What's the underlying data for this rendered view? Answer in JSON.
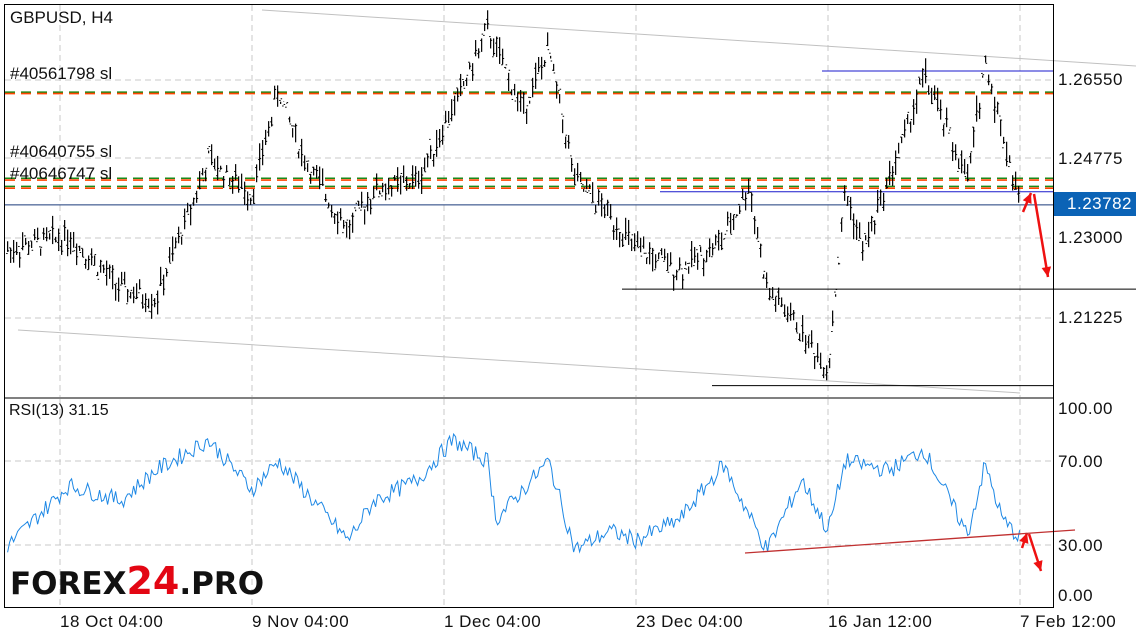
{
  "header": {
    "symbol_timeframe": "GBPUSD, H4"
  },
  "order_labels": [
    "#40561798 sl",
    "#40640755 sl",
    "#40646747 sl"
  ],
  "logo": {
    "prefix": "FOREX",
    "number": "24",
    "suffix": ".PRO"
  },
  "colors": {
    "candle": "#000000",
    "current_price_bg": "#0b63b6",
    "arrow": "#ee1111",
    "rsi_line": "#1e88e5",
    "order_green": "#1a8a1a",
    "order_orange": "#ff4500",
    "level_line": "#1a1acc",
    "trend_line": "#c0c0c0",
    "rsi_support": "#c03030"
  },
  "chart_data": [
    {
      "type": "candlestick",
      "title": "GBPUSD, H4",
      "current_price": "1.23782",
      "y_ticks": [
        "1.26550",
        "1.24775",
        "1.23000",
        "1.21225"
      ],
      "ylim": [
        1.195,
        1.285
      ],
      "x_ticks": [
        "18 Oct 04:00",
        "9 Nov 04:00",
        "1 Dec 04:00",
        "23 Dec 04:00",
        "16 Jan 12:00",
        "7 Feb 12:00"
      ],
      "grid": true,
      "price_path": [
        {
          "t": "12 Oct",
          "v": 1.2278
        },
        {
          "t": "19 Oct",
          "v": 1.2311
        },
        {
          "t": "25 Oct",
          "v": 1.2189
        },
        {
          "t": "29 Oct",
          "v": 1.2167
        },
        {
          "t": "4 Nov",
          "v": 1.2478
        },
        {
          "t": "9 Nov",
          "v": 1.24
        },
        {
          "t": "12 Nov",
          "v": 1.2633
        },
        {
          "t": "15 Nov",
          "v": 1.2478
        },
        {
          "t": "20 Nov",
          "v": 1.2322
        },
        {
          "t": "23 Nov",
          "v": 1.2411
        },
        {
          "t": "28 Nov",
          "v": 1.2433
        },
        {
          "t": "3 Dec",
          "v": 1.2633
        },
        {
          "t": "6 Dec",
          "v": 1.2766
        },
        {
          "t": "10 Dec",
          "v": 1.2588
        },
        {
          "t": "13 Dec",
          "v": 1.2722
        },
        {
          "t": "16 Dec",
          "v": 1.2433
        },
        {
          "t": "20 Dec",
          "v": 1.2355
        },
        {
          "t": "23 Dec",
          "v": 1.2278
        },
        {
          "t": "28 Dec",
          "v": 1.2234
        },
        {
          "t": "2 Jan",
          "v": 1.23
        },
        {
          "t": "5 Jan",
          "v": 1.2422
        },
        {
          "t": "7 Jan",
          "v": 1.2189
        },
        {
          "t": "10 Jan",
          "v": 1.2122
        },
        {
          "t": "14 Jan",
          "v": 1.2011
        },
        {
          "t": "16 Jan",
          "v": 1.2411
        },
        {
          "t": "18 Jan",
          "v": 1.2278
        },
        {
          "t": "23 Jan",
          "v": 1.2544
        },
        {
          "t": "25 Jan",
          "v": 1.2666
        },
        {
          "t": "30 Jan",
          "v": 1.2433
        },
        {
          "t": "1 Feb",
          "v": 1.2699
        },
        {
          "t": "5 Feb",
          "v": 1.2378
        }
      ],
      "order_levels": [
        1.2628,
        1.2625,
        1.2437,
        1.2433,
        1.2419,
        1.2415
      ],
      "levels": [
        1.2675,
        1.2407,
        1.2378,
        1.2191,
        1.1977
      ]
    },
    {
      "type": "line",
      "title": "RSI(13) 31.15",
      "ylim": [
        0,
        100
      ],
      "y_ticks": [
        "100.00",
        "70.00",
        "30.00",
        "0.00"
      ],
      "series": [
        {
          "name": "RSI(13)",
          "values": [
            {
              "t": "12 Oct",
              "v": 27
            },
            {
              "t": "19 Oct",
              "v": 59
            },
            {
              "t": "25 Oct",
              "v": 51
            },
            {
              "t": "29 Oct",
              "v": 67
            },
            {
              "t": "4 Nov",
              "v": 83
            },
            {
              "t": "9 Nov",
              "v": 57
            },
            {
              "t": "12 Nov",
              "v": 72
            },
            {
              "t": "20 Nov",
              "v": 30
            },
            {
              "t": "23 Nov",
              "v": 51
            },
            {
              "t": "28 Nov",
              "v": 62
            },
            {
              "t": "2 Dec",
              "v": 83
            },
            {
              "t": "6 Dec",
              "v": 72
            },
            {
              "t": "7 Dec",
              "v": 41
            },
            {
              "t": "13 Dec",
              "v": 72
            },
            {
              "t": "16 Dec",
              "v": 25
            },
            {
              "t": "20 Dec",
              "v": 35
            },
            {
              "t": "23 Dec",
              "v": 30
            },
            {
              "t": "28 Dec",
              "v": 41
            },
            {
              "t": "2 Jan",
              "v": 70
            },
            {
              "t": "7 Jan",
              "v": 25
            },
            {
              "t": "11 Jan",
              "v": 62
            },
            {
              "t": "14 Jan",
              "v": 35
            },
            {
              "t": "16 Jan",
              "v": 72
            },
            {
              "t": "21 Jan",
              "v": 67
            },
            {
              "t": "25 Jan",
              "v": 78
            },
            {
              "t": "30 Jan",
              "v": 33
            },
            {
              "t": "1 Feb",
              "v": 70
            },
            {
              "t": "3 Feb",
              "v": 41
            },
            {
              "t": "5 Feb",
              "v": 31.15
            }
          ]
        }
      ]
    }
  ]
}
